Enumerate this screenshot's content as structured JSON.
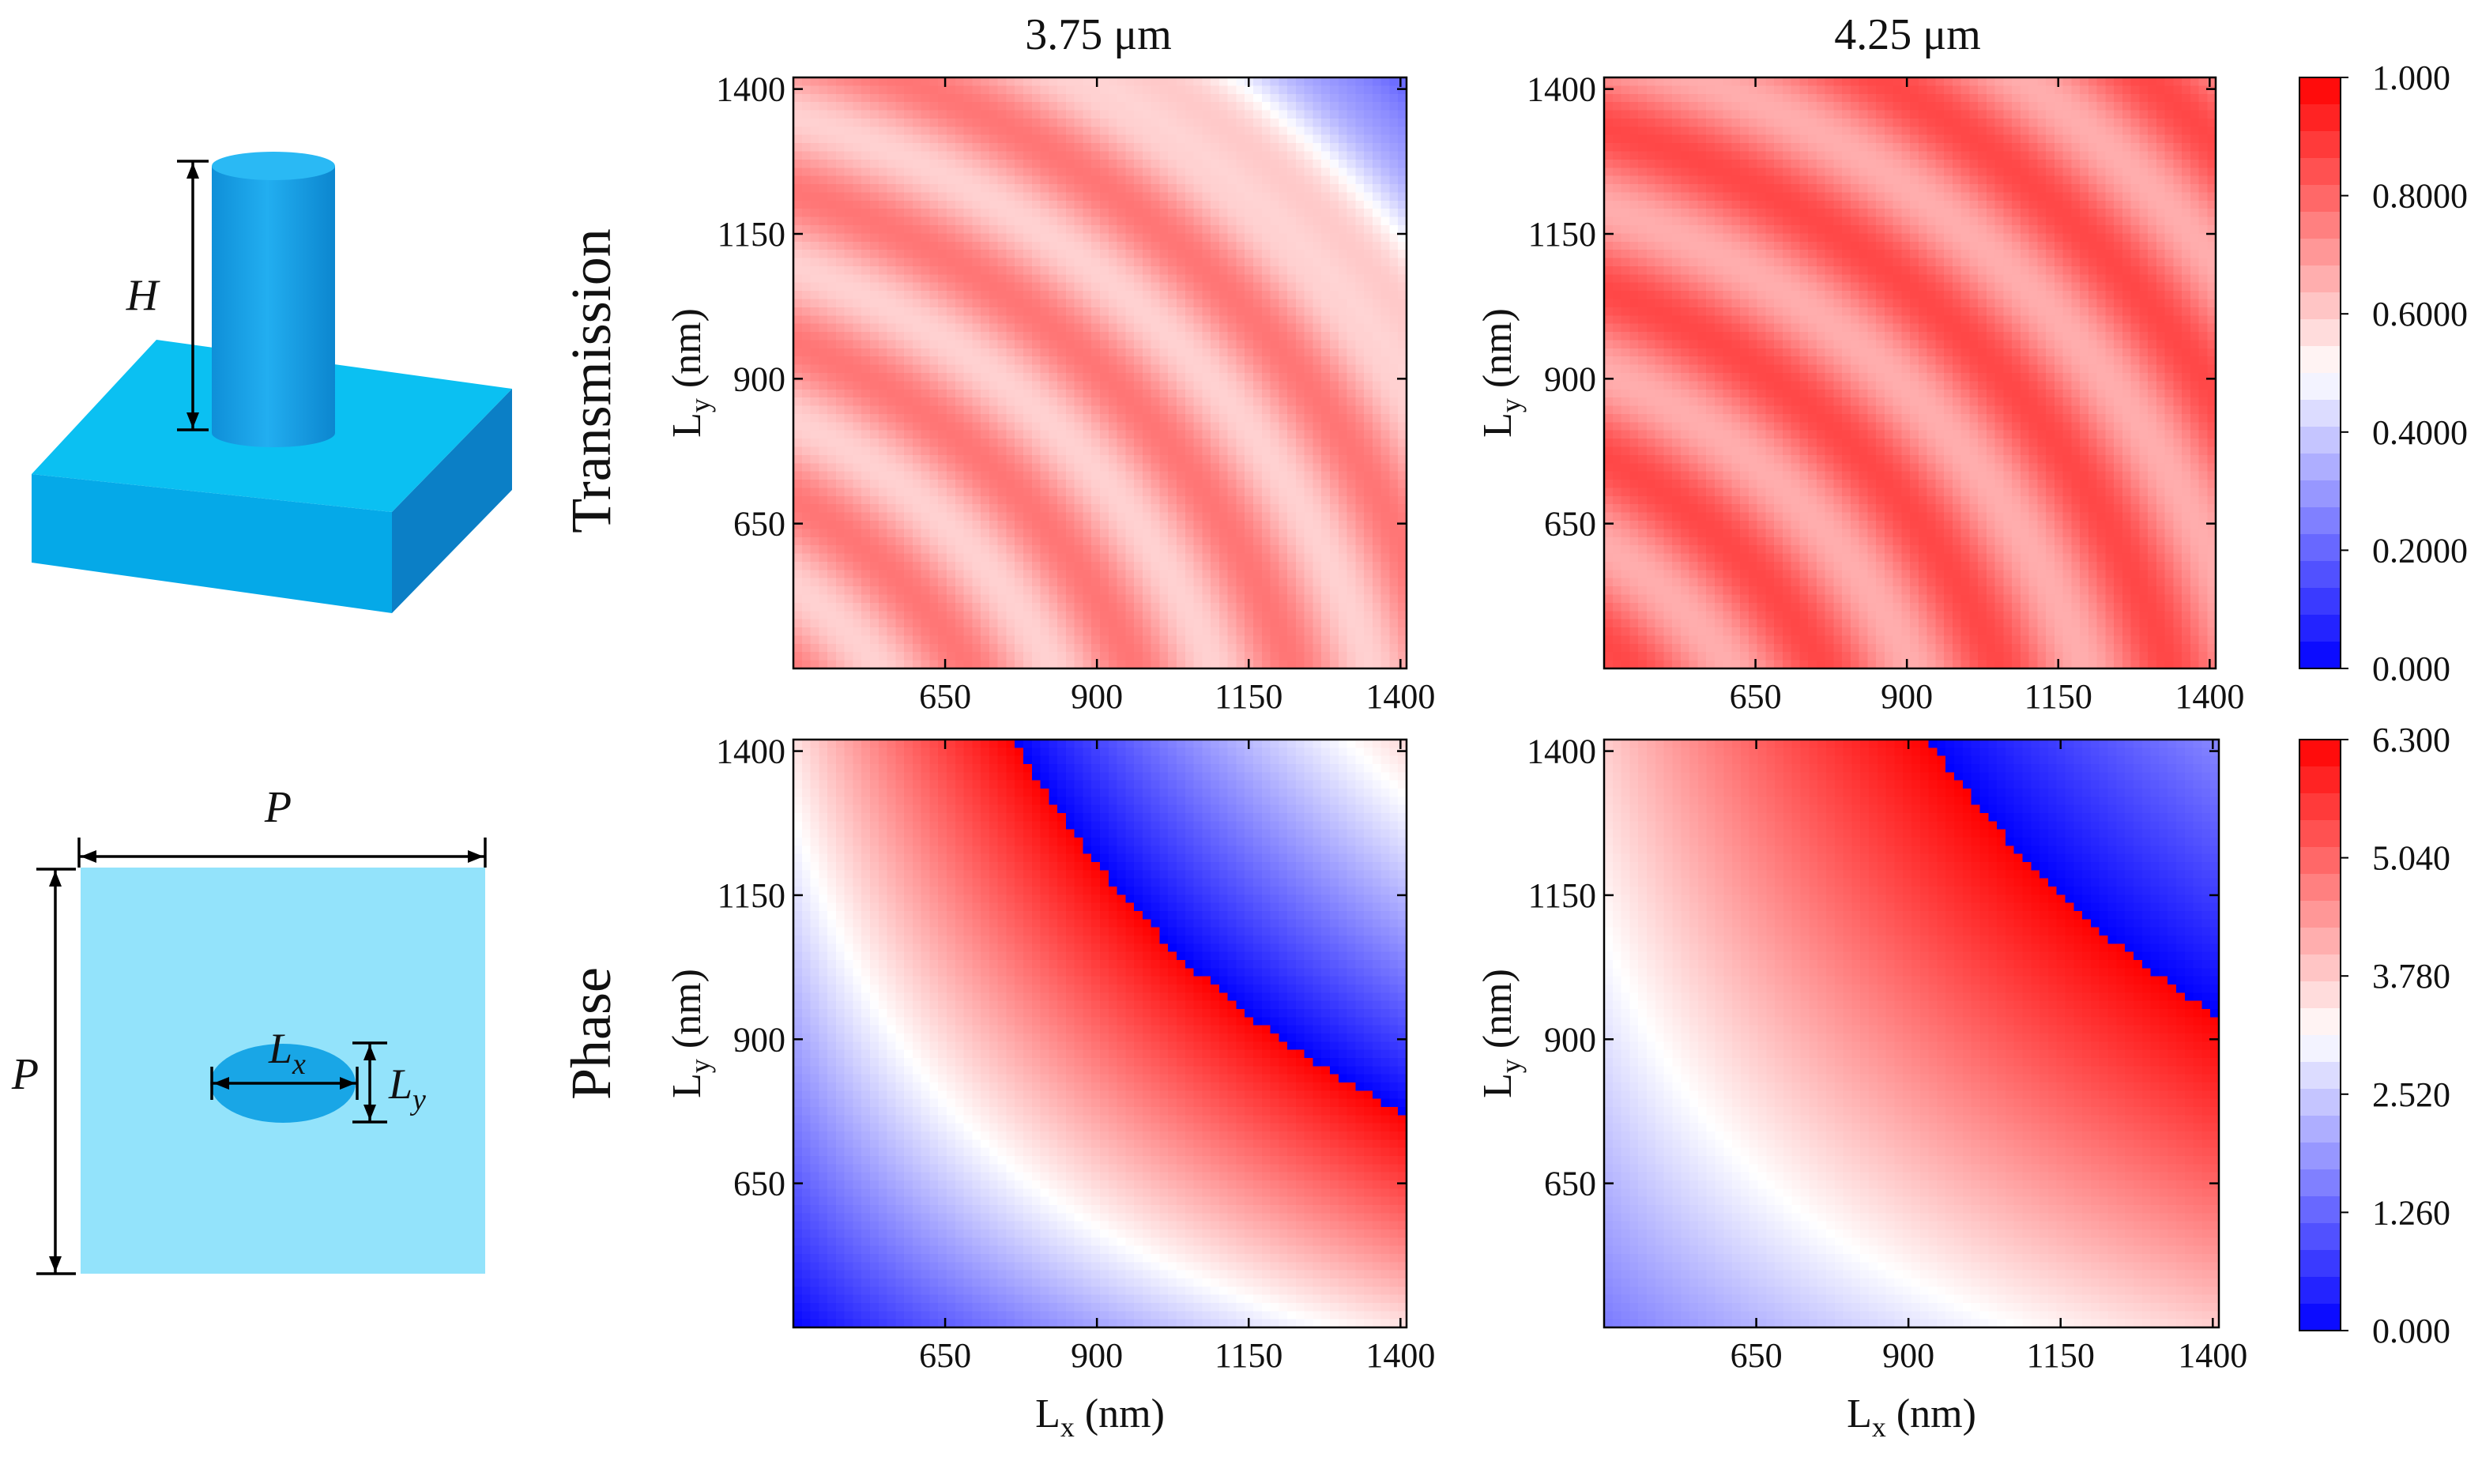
{
  "schematic": {
    "height_label": "H",
    "period_label": "P",
    "lx_label": "L",
    "lx_sub": "x",
    "ly_label": "L",
    "ly_sub": "y",
    "colors": {
      "top": "#0bc0f2",
      "front": "#05a9e8",
      "side": "#0b7fc6",
      "pillar": "#1aa1e4",
      "plan": "#93e3fb",
      "ellipse": "#19a6e6"
    }
  },
  "columns": [
    "3.75 μm",
    "4.25 μm"
  ],
  "rows": [
    "Transmission",
    "Phase"
  ],
  "axis_text": {
    "y_main": "L",
    "y_sub": "y",
    "x_main": "L",
    "x_sub": "x",
    "unit": " (nm)"
  },
  "chart_data": [
    {
      "type": "heatmap",
      "title": "3.75 μm",
      "row_label": "Transmission",
      "quantity": "transmission",
      "xlabel": "Lx (nm)",
      "ylabel": "Ly (nm)",
      "xlim": [
        400,
        1410
      ],
      "ylim": [
        400,
        1420
      ],
      "xticks": [
        650,
        900,
        1150,
        1400
      ],
      "yticks": [
        650,
        900,
        1150,
        1400
      ],
      "range": [
        0.0,
        1.0
      ],
      "approx_field": {
        "base": 0.68,
        "fringe_amplitude": 0.09,
        "fringe_period": 245,
        "dip_center_r": 1880,
        "dip_min": 0.22
      }
    },
    {
      "type": "heatmap",
      "title": "4.25 μm",
      "row_label": "Transmission",
      "quantity": "transmission",
      "xlabel": "Lx (nm)",
      "ylabel": "Ly (nm)",
      "xlim": [
        400,
        1410
      ],
      "ylim": [
        400,
        1420
      ],
      "xticks": [
        650,
        900,
        1150,
        1400
      ],
      "yticks": [
        650,
        900,
        1150,
        1400
      ],
      "range": [
        0.0,
        1.0
      ],
      "approx_field": {
        "base": 0.76,
        "fringe_amplitude": 0.1,
        "fringe_period": 265
      }
    },
    {
      "type": "heatmap",
      "title": "3.75 μm",
      "row_label": "Phase",
      "quantity": "phase",
      "xlabel": "Lx (nm)",
      "ylabel": "Ly (nm)",
      "xlim": [
        400,
        1410
      ],
      "ylim": [
        400,
        1420
      ],
      "xticks": [
        650,
        900,
        1150,
        1400
      ],
      "yticks": [
        650,
        900,
        1150,
        1400
      ],
      "range": [
        0.0,
        6.3
      ],
      "approx_field": {
        "r0": 205,
        "slope": 0.0195,
        "offset": 0.15
      }
    },
    {
      "type": "heatmap",
      "title": "4.25 μm",
      "row_label": "Phase",
      "quantity": "phase",
      "xlabel": "Lx (nm)",
      "ylabel": "Ly (nm)",
      "xlim": [
        400,
        1410
      ],
      "ylim": [
        400,
        1420
      ],
      "xticks": [
        650,
        900,
        1150,
        1400
      ],
      "yticks": [
        650,
        900,
        1150,
        1400
      ],
      "range": [
        0.0,
        6.3
      ],
      "approx_field": {
        "r0": 130,
        "slope": 0.0128,
        "offset": 0.6
      }
    }
  ],
  "colorbars": [
    {
      "quantity": "transmission",
      "range": [
        0.0,
        1.0
      ],
      "ticks": [
        "1.000",
        "0.8000",
        "0.6000",
        "0.4000",
        "0.2000",
        "0.000"
      ]
    },
    {
      "quantity": "phase",
      "range": [
        0.0,
        6.3
      ],
      "ticks": [
        "6.300",
        "5.040",
        "3.780",
        "2.520",
        "1.260",
        "0.000"
      ]
    }
  ],
  "colormap": [
    "#0000ff",
    "#ffffff",
    "#ff0000"
  ]
}
